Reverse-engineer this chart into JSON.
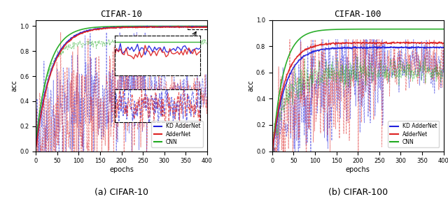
{
  "title_left": "CIFAR-10",
  "title_right": "CIFAR-100",
  "xlabel": "epochs",
  "ylabel": "acc",
  "caption_left": "(a) CIFAR-10",
  "caption_right": "(b) CIFAR-100",
  "n_epochs": 400,
  "colors": {
    "kd_addernet": "#2020dd",
    "addernet": "#dd2020",
    "cnn": "#20aa20"
  },
  "legend_labels": [
    "KD AdderNet",
    "AdderNet",
    "CNN"
  ],
  "cifar10_ylim": [
    0,
    1.05
  ],
  "cifar100_ylim": [
    0,
    1.0
  ],
  "xticks": [
    0,
    50,
    100,
    150,
    200,
    250,
    300,
    350,
    400
  ]
}
